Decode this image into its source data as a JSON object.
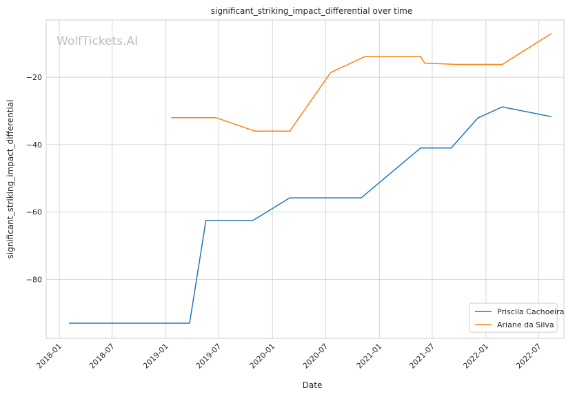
{
  "chart_data": {
    "type": "line",
    "title": "significant_striking_impact_differential over time",
    "xlabel": "Date",
    "ylabel": "significant_striking_impact_differential",
    "watermark": "WolfTickets.AI",
    "grid": true,
    "legend_position": "lower-right",
    "xlim": [
      "2017-11-17",
      "2022-09-25"
    ],
    "ylim": [
      -97.5,
      -3.0
    ],
    "x_ticks": [
      "2018-01",
      "2018-07",
      "2019-01",
      "2019-07",
      "2020-01",
      "2020-07",
      "2021-01",
      "2021-07",
      "2022-01",
      "2022-07"
    ],
    "y_ticks": [
      -80,
      -60,
      -40,
      -20
    ],
    "y_tick_labels": [
      "−80",
      "−60",
      "−40",
      "−20"
    ],
    "series": [
      {
        "name": "Priscila Cachoeira",
        "color": "#1f77b4",
        "x": [
          "2018-02-03",
          "2019-03-23",
          "2019-05-18",
          "2019-10-26",
          "2020-02-29",
          "2020-10-31",
          "2021-05-22",
          "2021-09-04",
          "2021-12-04",
          "2022-02-26",
          "2022-08-13"
        ],
        "y": [
          -93.0,
          -93.0,
          -62.5,
          -62.5,
          -55.8,
          -55.8,
          -41.0,
          -41.0,
          -32.1,
          -28.8,
          -31.7
        ]
      },
      {
        "name": "Ariane da Silva",
        "color": "#ff7f0e",
        "x": [
          "2019-01-19",
          "2019-06-22",
          "2019-11-02",
          "2020-02-29",
          "2020-07-18",
          "2020-11-14",
          "2021-05-22",
          "2021-06-05",
          "2021-09-25",
          "2022-02-26",
          "2022-08-13"
        ],
        "y": [
          -32.0,
          -32.0,
          -36.0,
          -36.0,
          -18.6,
          -13.8,
          -13.8,
          -15.8,
          -16.2,
          -16.2,
          -7.0
        ]
      }
    ]
  }
}
